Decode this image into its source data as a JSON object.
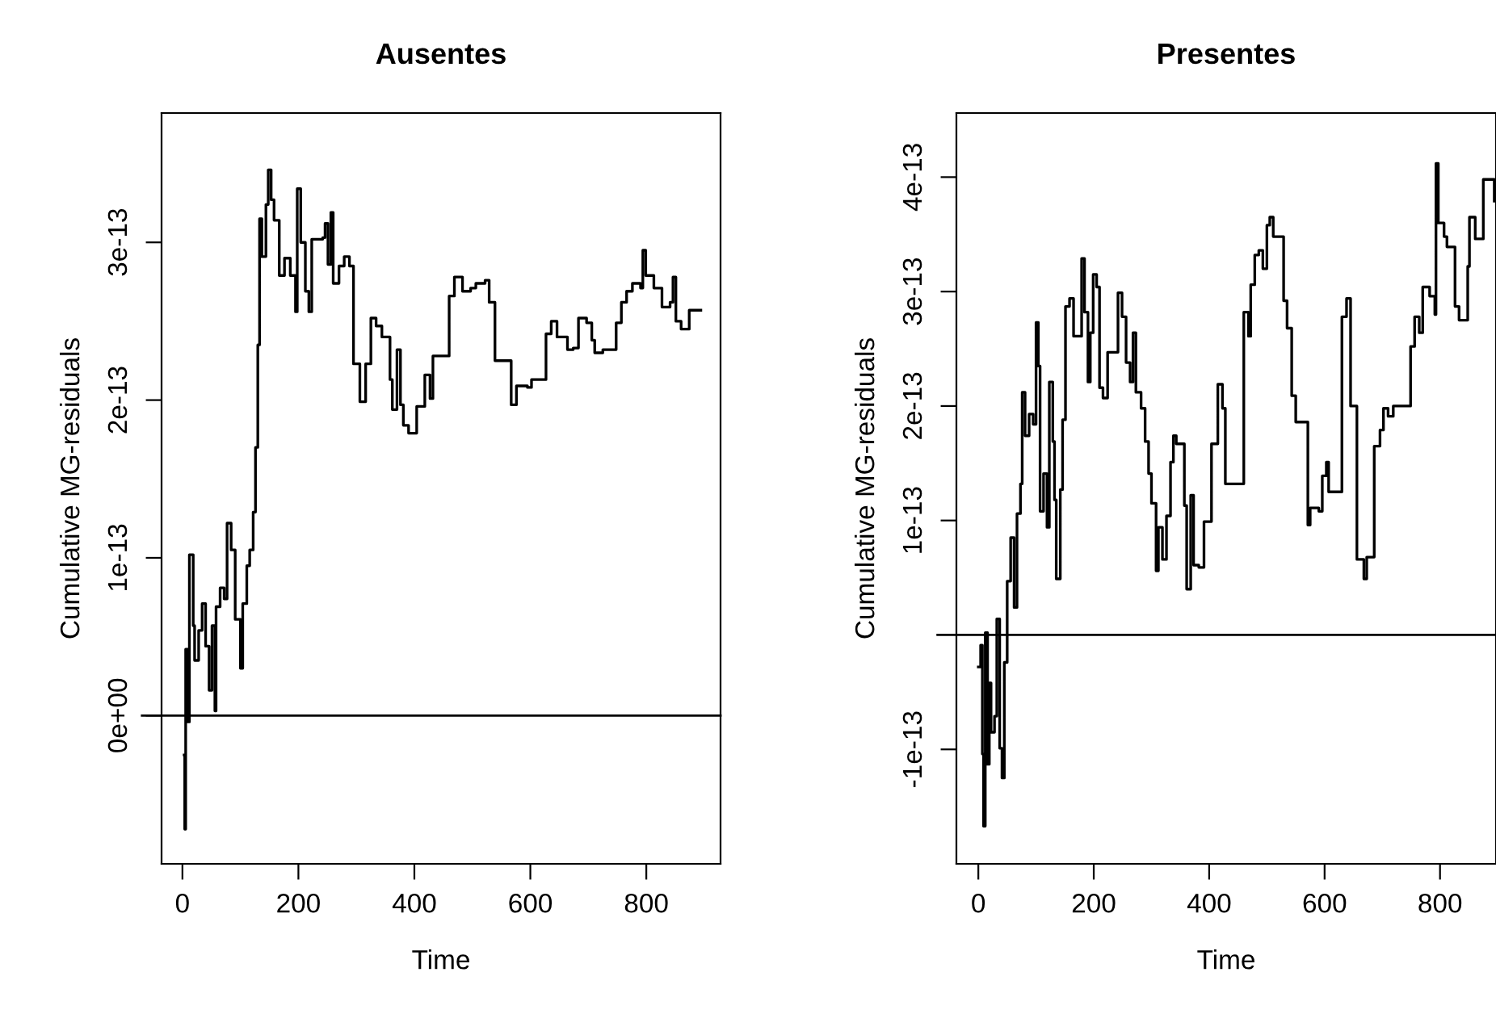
{
  "chart_data": [
    {
      "type": "step",
      "title": "Ausentes",
      "xlabel": "Time",
      "ylabel": "Cumulative MG-residuals",
      "grid": false,
      "legend": false,
      "marker": "none",
      "line_style": "solid",
      "xlim": [
        -36,
        928
      ],
      "xticks": [
        0,
        200,
        400,
        600,
        800
      ],
      "ylim": [
        -9.4e-14,
        3.82e-13
      ],
      "yticks": [
        {
          "value": 0,
          "label": "0e+00"
        },
        {
          "value": 1e-13,
          "label": "1e-13"
        },
        {
          "value": 2e-13,
          "label": "2e-13"
        },
        {
          "value": 3e-13,
          "label": "3e-13"
        }
      ],
      "ref_lines": [
        {
          "axis": "y",
          "value": 0,
          "color": "#000000"
        }
      ],
      "series": [
        {
          "color": "#000000",
          "x": [
            3,
            4,
            5.6,
            9,
            12,
            18.6,
            21,
            28,
            34,
            40,
            46,
            51,
            56,
            58,
            65,
            72,
            77,
            84,
            91,
            100,
            104,
            111,
            116,
            122,
            126,
            130,
            133,
            137,
            144,
            148,
            153,
            158,
            167,
            176,
            186,
            195,
            198,
            204,
            212,
            218,
            223,
            242,
            246,
            251,
            256,
            260,
            270,
            279,
            288,
            295,
            306,
            316,
            325,
            334,
            344,
            358,
            362,
            370,
            376,
            381,
            390,
            404,
            418,
            427,
            432,
            455,
            460,
            469,
            483,
            497,
            506,
            522,
            529,
            539,
            567,
            576,
            595,
            602,
            627,
            636,
            646,
            664,
            674,
            683,
            697,
            706,
            711,
            725,
            748,
            757,
            766,
            776,
            790,
            794,
            799,
            813,
            827,
            841,
            846,
            851,
            860,
            874,
            894
          ],
          "values": [
            -2.5e-14,
            -7.2e-14,
            4.2e-14,
            -4e-15,
            1.02e-13,
            5.7e-14,
            3.5e-14,
            5.4e-14,
            7.1e-14,
            4.4e-14,
            1.6e-14,
            5.7e-14,
            3e-15,
            6.9e-14,
            8.1e-14,
            7.4e-14,
            1.22e-13,
            1.05e-13,
            6.1e-14,
            3e-14,
            7.1e-14,
            9.5e-14,
            1.05e-13,
            1.29e-13,
            1.7e-13,
            2.35e-13,
            3.15e-13,
            2.91e-13,
            3.24e-13,
            3.46e-13,
            3.27e-13,
            3.14e-13,
            2.79e-13,
            2.9e-13,
            2.79e-13,
            2.56e-13,
            3.34e-13,
            3e-13,
            2.69e-13,
            2.56e-13,
            3.02e-13,
            3.03e-13,
            3.12e-13,
            2.86e-13,
            3.19e-13,
            2.74e-13,
            2.85e-13,
            2.91e-13,
            2.85e-13,
            2.23e-13,
            1.99e-13,
            2.23e-13,
            2.52e-13,
            2.47e-13,
            2.4e-13,
            2.13e-13,
            1.94e-13,
            2.32e-13,
            1.97e-13,
            1.84e-13,
            1.79e-13,
            1.96e-13,
            2.16e-13,
            2.01e-13,
            2.28e-13,
            2.28e-13,
            2.66e-13,
            2.78e-13,
            2.69e-13,
            2.71e-13,
            2.74e-13,
            2.76e-13,
            2.62e-13,
            2.25e-13,
            1.97e-13,
            2.09e-13,
            2.08e-13,
            2.13e-13,
            2.42e-13,
            2.5e-13,
            2.4e-13,
            2.32e-13,
            2.33e-13,
            2.52e-13,
            2.49e-13,
            2.38e-13,
            2.3e-13,
            2.32e-13,
            2.49e-13,
            2.62e-13,
            2.69e-13,
            2.74e-13,
            2.71e-13,
            2.95e-13,
            2.79e-13,
            2.71e-13,
            2.59e-13,
            2.62e-13,
            2.78e-13,
            2.5e-13,
            2.45e-13,
            2.57e-13,
            2.57e-13
          ]
        }
      ]
    },
    {
      "type": "step",
      "title": "Presentes",
      "xlabel": "Time",
      "ylabel": "Cumulative MG-residuals",
      "grid": false,
      "legend": false,
      "marker": "none",
      "line_style": "solid",
      "xlim": [
        -38,
        897
      ],
      "xticks": [
        0,
        200,
        400,
        600,
        800
      ],
      "ylim": [
        -2e-13,
        4.56e-13
      ],
      "yticks": [
        {
          "value": -1e-13,
          "label": "-1e-13"
        },
        {
          "value": 1e-13,
          "label": "1e-13"
        },
        {
          "value": 2e-13,
          "label": "2e-13"
        },
        {
          "value": 3e-13,
          "label": "3e-13"
        },
        {
          "value": 4e-13,
          "label": "4e-13"
        }
      ],
      "ref_lines": [
        {
          "axis": "y",
          "value": 0,
          "color": "#000000"
        }
      ],
      "series": [
        {
          "color": "#000000",
          "x": [
            0,
            4,
            7,
            9,
            12,
            16,
            19,
            22,
            28,
            32,
            37,
            41,
            45,
            50,
            56,
            62,
            67,
            73,
            76,
            81,
            88,
            95,
            100,
            104,
            107,
            113,
            119,
            123,
            129,
            132,
            135,
            142,
            146,
            151,
            158,
            165,
            175,
            179,
            184,
            190,
            194,
            199,
            205,
            210,
            216,
            224,
            239,
            242,
            249,
            256,
            263,
            268,
            273,
            282,
            289,
            295,
            300,
            308,
            312,
            319,
            326,
            333,
            338,
            343,
            354,
            357,
            361,
            368,
            373,
            382,
            391,
            401,
            404,
            415,
            423,
            428,
            456,
            460,
            468,
            472,
            479,
            486,
            493,
            500,
            505,
            511,
            524,
            529,
            535,
            543,
            550,
            566,
            571,
            575,
            590,
            596,
            603,
            607,
            628,
            630,
            638,
            645,
            654,
            656,
            665,
            668,
            673,
            684,
            686,
            696,
            702,
            710,
            719,
            745,
            749,
            756,
            764,
            770,
            782,
            791,
            793,
            797,
            807,
            812,
            823,
            826,
            833,
            845,
            848,
            851,
            861,
            873,
            875,
            891,
            894
          ],
          "values": [
            -2.8e-14,
            -9e-15,
            -1.04e-13,
            -1.67e-13,
            2e-15,
            -1.13e-13,
            -4.2e-14,
            -8.5e-14,
            -7.1e-14,
            1.4e-14,
            -9.9e-14,
            -1.25e-13,
            -2.4e-14,
            4.7e-14,
            8.5e-14,
            2.4e-14,
            1.06e-13,
            1.32e-13,
            2.12e-13,
            1.74e-13,
            1.93e-13,
            1.84e-13,
            2.73e-13,
            2.35e-13,
            1.08e-13,
            1.41e-13,
            9.4e-14,
            2.21e-13,
            1.69e-13,
            1.18e-13,
            4.9e-14,
            1.27e-13,
            1.88e-13,
            2.87e-13,
            2.94e-13,
            2.61e-13,
            2.61e-13,
            3.29e-13,
            2.82e-13,
            2.21e-13,
            2.64e-13,
            3.15e-13,
            3.04e-13,
            2.16e-13,
            2.07e-13,
            2.47e-13,
            2.47e-13,
            2.99e-13,
            2.78e-13,
            2.38e-13,
            2.21e-13,
            2.64e-13,
            2.12e-13,
            1.98e-13,
            1.69e-13,
            1.41e-13,
            1.15e-13,
            5.6e-14,
            9.4e-14,
            6.6e-14,
            1.04e-13,
            1.51e-13,
            1.74e-13,
            1.67e-13,
            1.67e-13,
            1.13e-13,
            4e-14,
            1.22e-13,
            6.1e-14,
            5.9e-14,
            9.9e-14,
            9.9e-14,
            1.67e-13,
            2.19e-13,
            1.98e-13,
            1.32e-13,
            1.32e-13,
            2.82e-13,
            2.61e-13,
            3.06e-13,
            3.32e-13,
            3.36e-13,
            3.2e-13,
            3.58e-13,
            3.65e-13,
            3.48e-13,
            3.48e-13,
            2.92e-13,
            2.68e-13,
            2.09e-13,
            1.86e-13,
            1.86e-13,
            9.6e-14,
            1.11e-13,
            1.08e-13,
            1.39e-13,
            1.51e-13,
            1.25e-13,
            1.25e-13,
            2.78e-13,
            2.94e-13,
            2e-13,
            2e-13,
            6.6e-14,
            6.6e-14,
            4.9e-14,
            6.8e-14,
            6.8e-14,
            1.65e-13,
            1.79e-13,
            1.98e-13,
            1.91e-13,
            2e-13,
            2e-13,
            2.52e-13,
            2.78e-13,
            2.64e-13,
            3.04e-13,
            2.96e-13,
            2.8e-13,
            4.12e-13,
            3.6e-13,
            3.48e-13,
            3.39e-13,
            3.39e-13,
            2.87e-13,
            2.75e-13,
            2.75e-13,
            3.22e-13,
            3.65e-13,
            3.46e-13,
            3.46e-13,
            3.98e-13,
            3.98e-13,
            3.79e-13
          ]
        }
      ]
    }
  ]
}
